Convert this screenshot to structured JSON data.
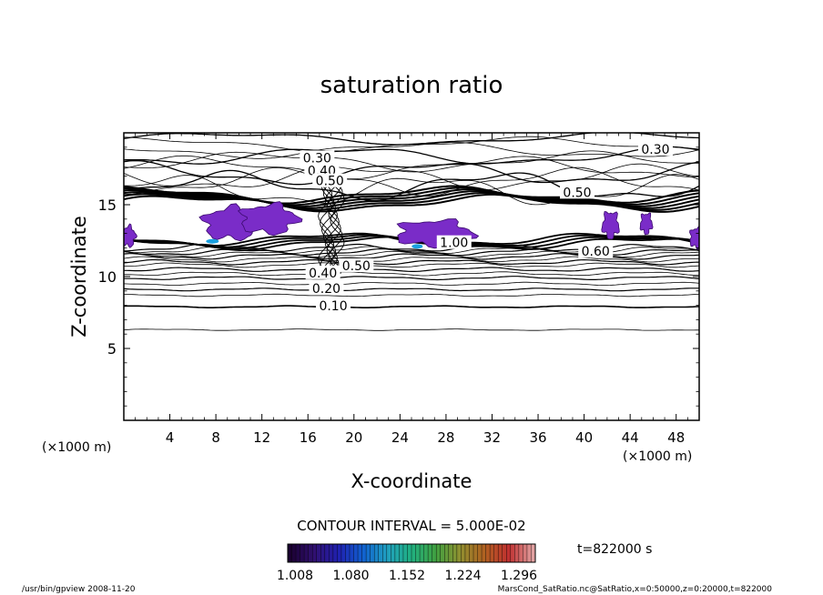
{
  "chart_data": {
    "type": "contour",
    "title": "saturation ratio",
    "xlabel": "X-coordinate",
    "ylabel": "Z-coordinate",
    "x_unit_left": "(×1000 m)",
    "x_unit_right": "(×1000 m)",
    "xlim": [
      0,
      50
    ],
    "ylim": [
      0,
      20
    ],
    "xticks": [
      4,
      8,
      12,
      16,
      20,
      24,
      28,
      32,
      36,
      40,
      44,
      48
    ],
    "xtick_labels": [
      "4",
      "8",
      "12",
      "16",
      "20",
      "24",
      "28",
      "32",
      "36",
      "40",
      "44",
      "48"
    ],
    "yticks": [
      5,
      10,
      15
    ],
    "ytick_labels": [
      "5",
      "10",
      "15"
    ],
    "contour_interval_label": "CONTOUR INTERVAL = 5.000E-02",
    "contour_labels": [
      {
        "text": "0.10",
        "x": 18.2,
        "z": 7.9
      },
      {
        "text": "0.20",
        "x": 17.6,
        "z": 9.1
      },
      {
        "text": "0.40",
        "x": 17.3,
        "z": 10.2
      },
      {
        "text": "0.50",
        "x": 20.2,
        "z": 10.7
      },
      {
        "text": "0.30",
        "x": 16.8,
        "z": 18.2
      },
      {
        "text": "0.40",
        "x": 17.2,
        "z": 17.3
      },
      {
        "text": "0.50",
        "x": 17.9,
        "z": 16.6
      },
      {
        "text": "0.50",
        "x": 39.4,
        "z": 15.8
      },
      {
        "text": "0.30",
        "x": 46.2,
        "z": 18.8
      },
      {
        "text": "1.00",
        "x": 28.7,
        "z": 12.3
      },
      {
        "text": "0.60",
        "x": 41.0,
        "z": 11.7
      }
    ],
    "colorbar": {
      "labels": [
        "1.008",
        "1.080",
        "1.152",
        "1.224",
        "1.296"
      ],
      "colors": [
        "#1a0030",
        "#301070",
        "#2020b0",
        "#1060d0",
        "#20a0c0",
        "#20b080",
        "#40a040",
        "#909030",
        "#b06020",
        "#c03030",
        "#e0a0a0"
      ]
    },
    "time_label": "t=822000 s",
    "fill_color": "#7a2cc8"
  },
  "footer": {
    "left": "/usr/bin/gpview   2008-11-20",
    "right": "MarsCond_SatRatio.nc@SatRatio,x=0:50000,z=0:20000,t=822000"
  }
}
